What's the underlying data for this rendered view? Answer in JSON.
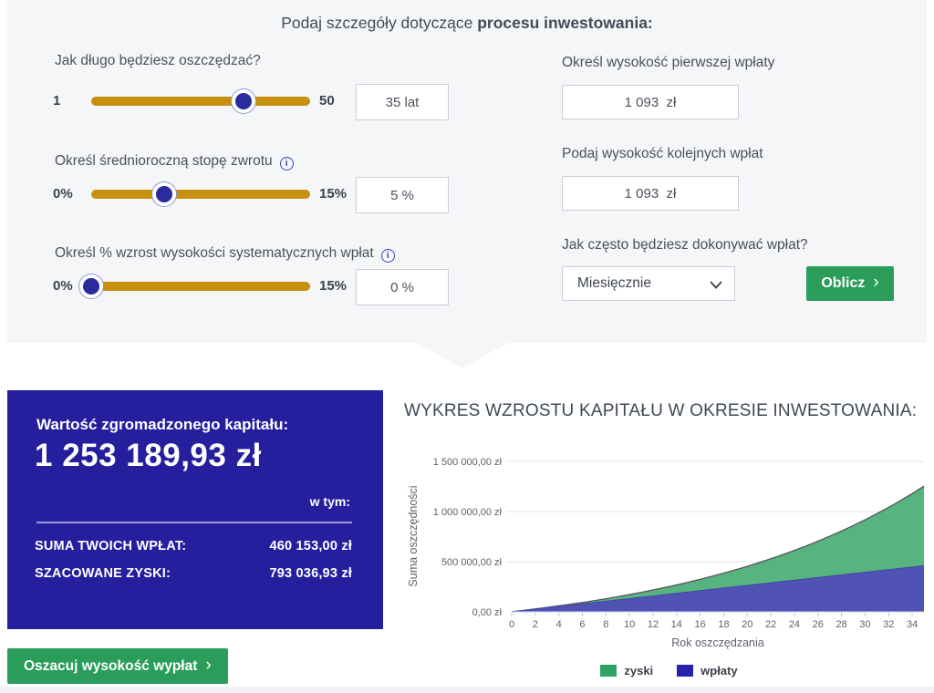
{
  "header": {
    "title_prefix": "Podaj szczegóły dotyczące ",
    "title_bold": "procesu inwestowania:"
  },
  "sliders": [
    {
      "label": "Jak długo będziesz oszczędzać?",
      "min": "1",
      "max": "50",
      "value": "35 lat",
      "handle_percent": 69.4,
      "has_info": false
    },
    {
      "label": "Określ średnioroczną stopę zwrotu",
      "min": "0%",
      "max": "15%",
      "value": "5 %",
      "handle_percent": 33.3,
      "has_info": true
    },
    {
      "label": "Określ % wzrost wysokości systematycznych wpłat",
      "min": "0%",
      "max": "15%",
      "value": "0 %",
      "handle_percent": 0,
      "has_info": true
    }
  ],
  "deposits": [
    {
      "label": "Określ wysokość pierwszej wpłaty",
      "value": "1 093  zł"
    },
    {
      "label": "Podaj wysokość kolejnych wpłat",
      "value": "1 093  zł"
    }
  ],
  "frequency": {
    "label": "Jak często będziesz dokonywać wpłat?",
    "selected": "Miesięcznie"
  },
  "buttons": {
    "calculate": "Oblicz",
    "estimate": "Oszacuj wysokość wypłat"
  },
  "result": {
    "title": "Wartość zgromadzonego kapitału:",
    "total": "1 253 189,93 zł",
    "breakdown_label": "w tym:",
    "rows": [
      {
        "label": "SUMA TWOICH WPŁAT:",
        "value": "460 153,00 zł"
      },
      {
        "label": "SZACOWANE ZYSKI:",
        "value": "793 036,93 zł"
      }
    ]
  },
  "colors": {
    "slider_track": "#c7900d",
    "slider_handle": "#2b2b9e",
    "accent_green": "#2a9d5b",
    "result_panel": "#251f9e"
  },
  "chart_data": {
    "type": "area",
    "stacked": true,
    "title": "WYKRES WZROSTU KAPITAŁU W OKRESIE INWESTOWANIA:",
    "xlabel": "Rok oszczędzania",
    "ylabel": "Suma oszczędności",
    "x": [
      0,
      1,
      2,
      3,
      4,
      5,
      6,
      7,
      8,
      9,
      10,
      11,
      12,
      13,
      14,
      15,
      16,
      17,
      18,
      19,
      20,
      21,
      22,
      23,
      24,
      25,
      26,
      27,
      28,
      29,
      30,
      31,
      32,
      33,
      34,
      35
    ],
    "series": [
      {
        "name": "wpłaty",
        "area_color": "#5153b4",
        "values": [
          1093,
          14209,
          27325,
          40441,
          53557,
          66673,
          79789,
          92905,
          106021,
          119137,
          132253,
          145369,
          158485,
          171601,
          184717,
          197833,
          210949,
          224065,
          237181,
          250297,
          263413,
          276529,
          289645,
          302761,
          315877,
          328993,
          342109,
          355225,
          368341,
          381457,
          394573,
          407689,
          420805,
          433921,
          447037,
          460153
        ]
      },
      {
        "name": "zyski",
        "area_color": "#57b47e",
        "values": [
          0,
          416,
          1520,
          3356,
          5956,
          9356,
          13606,
          18740,
          24807,
          31856,
          39937,
          49106,
          59410,
          70914,
          83680,
          97760,
          113243,
          130180,
          148657,
          168749,
          190545,
          214118,
          239570,
          267005,
          296507,
          328185,
          362162,
          398546,
          437459,
          479039,
          523407,
          570721,
          621128,
          674778,
          731840,
          793037
        ]
      }
    ],
    "ylim": [
      0,
      1500000
    ],
    "ytick_values": [
      0,
      500000,
      1000000,
      1500000
    ],
    "ytick_labels": [
      "0,00 zł",
      "500 000,00 zł",
      "1 000 000,00 zł",
      "1 500 000,00 zł"
    ],
    "xtick_step": 2,
    "grid": true,
    "legend_position": "bottom",
    "legend": [
      {
        "label": "zyski",
        "color": "#2fa364"
      },
      {
        "label": "wpłaty",
        "color": "#2523ae"
      }
    ]
  }
}
